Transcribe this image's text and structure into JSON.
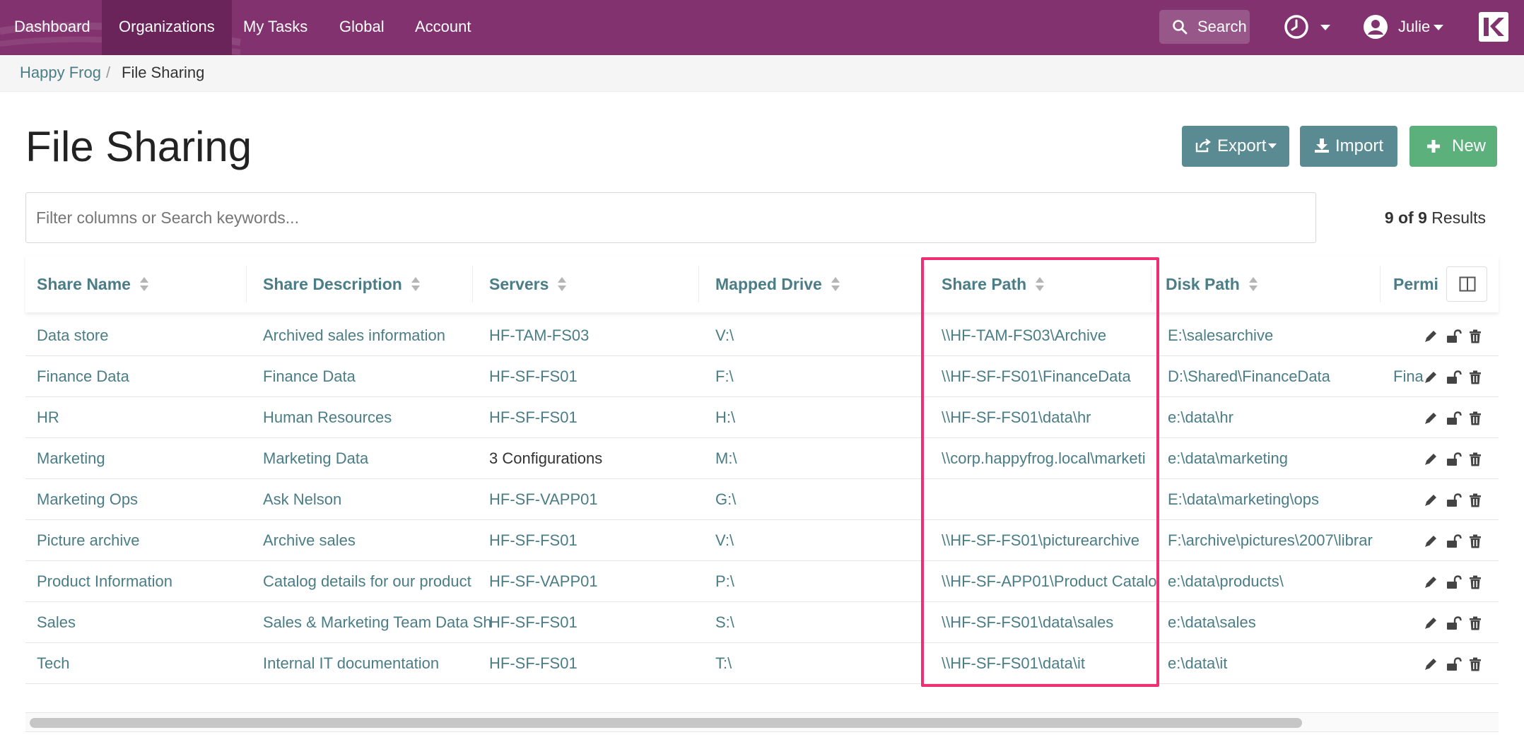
{
  "nav": {
    "items": [
      {
        "label": "Dashboard",
        "active": false
      },
      {
        "label": "Organizations",
        "active": true
      },
      {
        "label": "My Tasks",
        "active": false
      },
      {
        "label": "Global",
        "active": false
      },
      {
        "label": "Account",
        "active": false
      }
    ],
    "search_label": "Search",
    "user_name": "Julie",
    "brand_color": "#82336f",
    "active_color": "#6a2459"
  },
  "breadcrumb": {
    "org": "Happy Frog",
    "separator": "/",
    "current": "File Sharing"
  },
  "page": {
    "title": "File Sharing",
    "export_label": "Export",
    "import_label": "Import",
    "new_label": "New"
  },
  "filter": {
    "placeholder": "Filter columns or Search keywords...",
    "results_count": "9 of 9",
    "results_label": "Results"
  },
  "table": {
    "columns": [
      "Share Name",
      "Share Description",
      "Servers",
      "Mapped Drive",
      "Share Path",
      "Disk Path",
      "Permi"
    ],
    "rows": [
      {
        "name": "Data store",
        "description": "Archived sales information",
        "servers": "HF-TAM-FS03",
        "drive": "V:\\",
        "share_path": "\\\\HF-TAM-FS03\\Archive",
        "disk_path": "E:\\salesarchive",
        "permissions": ""
      },
      {
        "name": "Finance Data",
        "description": "Finance Data",
        "servers": "HF-SF-FS01",
        "drive": "F:\\",
        "share_path": "\\\\HF-SF-FS01\\FinanceData",
        "disk_path": "D:\\Shared\\FinanceData",
        "permissions": "Fina"
      },
      {
        "name": "HR",
        "description": "Human Resources",
        "servers": "HF-SF-FS01",
        "drive": "H:\\",
        "share_path": "\\\\HF-SF-FS01\\data\\hr",
        "disk_path": "e:\\data\\hr",
        "permissions": ""
      },
      {
        "name": "Marketing",
        "description": "Marketing Data",
        "servers": "3 Configurations",
        "drive": "M:\\",
        "share_path": "\\\\corp.happyfrog.local\\marketi",
        "disk_path": "e:\\data\\marketing",
        "permissions": ""
      },
      {
        "name": "Marketing Ops",
        "description": "Ask Nelson",
        "servers": "HF-SF-VAPP01",
        "drive": "G:\\",
        "share_path": "",
        "disk_path": "E:\\data\\marketing\\ops",
        "permissions": ""
      },
      {
        "name": "Picture archive",
        "description": "Archive sales",
        "servers": "HF-SF-FS01",
        "drive": "V:\\",
        "share_path": "\\\\HF-SF-FS01\\picturearchive",
        "disk_path": "F:\\archive\\pictures\\2007\\librar",
        "permissions": ""
      },
      {
        "name": "Product Information",
        "description": "Catalog details for our product",
        "servers": "HF-SF-VAPP01",
        "drive": "P:\\",
        "share_path": "\\\\HF-SF-APP01\\Product Catalo",
        "disk_path": "e:\\data\\products\\",
        "permissions": ""
      },
      {
        "name": "Sales",
        "description": "Sales & Marketing Team Data Sh",
        "servers": "HF-SF-FS01",
        "drive": "S:\\",
        "share_path": "\\\\HF-SF-FS01\\data\\sales",
        "disk_path": "e:\\data\\sales",
        "permissions": ""
      },
      {
        "name": "Tech",
        "description": "Internal IT documentation",
        "servers": "HF-SF-FS01",
        "drive": "T:\\",
        "share_path": "\\\\HF-SF-FS01\\data\\it",
        "disk_path": "e:\\data\\it",
        "permissions": ""
      }
    ]
  },
  "colors": {
    "link": "#4a7d86",
    "button_teal": "#5a8b93",
    "button_green": "#5bb07c",
    "highlight": "#ef2f73"
  }
}
